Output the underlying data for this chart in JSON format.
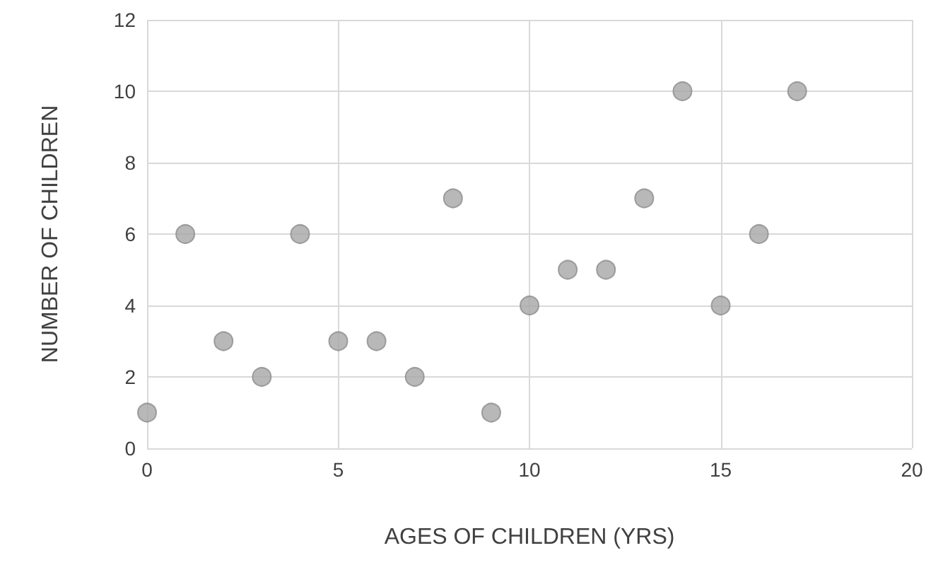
{
  "chart_data": {
    "type": "scatter",
    "xlabel": "AGES OF CHILDREN (YRS)",
    "ylabel": "NUMBER OF CHILDREN",
    "x": [
      0,
      1,
      2,
      3,
      4,
      5,
      6,
      7,
      8,
      9,
      10,
      11,
      12,
      13,
      14,
      15,
      16,
      17
    ],
    "values": [
      1,
      6,
      3,
      2,
      6,
      3,
      3,
      2,
      7,
      1,
      4,
      5,
      5,
      7,
      10,
      4,
      6,
      10
    ],
    "color": "#a6a6a6",
    "xlim": [
      0,
      20
    ],
    "xticks": [
      0,
      5,
      10,
      15,
      20
    ],
    "ylim": [
      0,
      12
    ],
    "yticks": [
      0,
      2,
      4,
      6,
      8,
      10,
      12
    ],
    "grid": true,
    "marker": "circle"
  }
}
